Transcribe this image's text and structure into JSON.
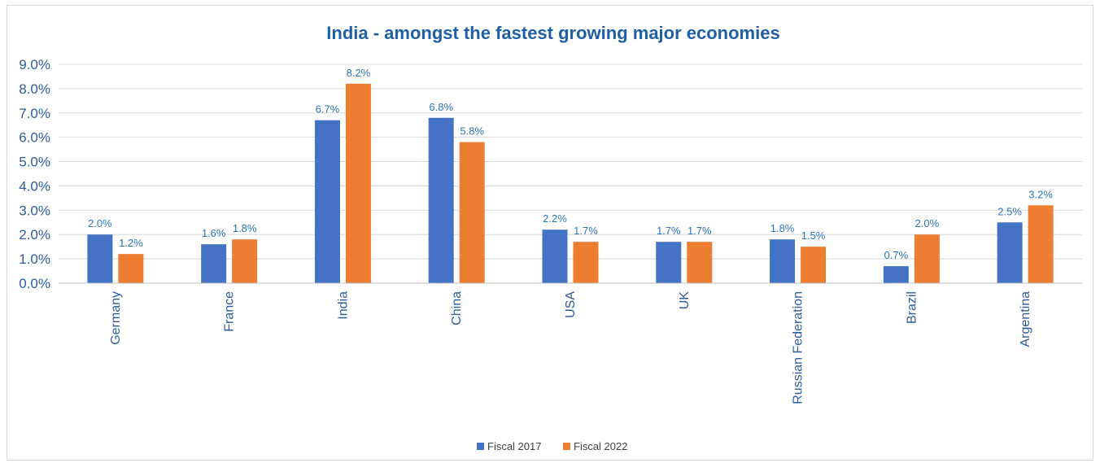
{
  "chart_data": {
    "type": "bar",
    "title": "India - amongst the fastest growing major economies",
    "xlabel": "",
    "ylabel": "",
    "categories": [
      "Germany",
      "France",
      "India",
      "China",
      "USA",
      "UK",
      "Russian Federation",
      "Brazil",
      "Argentina"
    ],
    "series": [
      {
        "name": "Fiscal 2017",
        "values": [
          2.0,
          1.6,
          6.7,
          6.8,
          2.2,
          1.7,
          1.8,
          0.7,
          2.5
        ],
        "labels": [
          "2.0%",
          "1.6%",
          "6.7%",
          "6.8%",
          "2.2%",
          "1.7%",
          "1.8%",
          "0.7%",
          "2.5%"
        ],
        "color": "#4472C4"
      },
      {
        "name": "Fiscal 2022",
        "values": [
          1.2,
          1.8,
          8.2,
          5.8,
          1.7,
          1.7,
          1.5,
          2.0,
          3.2
        ],
        "labels": [
          "1.2%",
          "1.8%",
          "8.2%",
          "5.8%",
          "1.7%",
          "1.7%",
          "1.5%",
          "2.0%",
          "3.2%"
        ],
        "color": "#ED7D31"
      }
    ],
    "ylim": [
      0,
      9
    ],
    "yticks": [
      "0.0%",
      "1.0%",
      "2.0%",
      "3.0%",
      "4.0%",
      "5.0%",
      "6.0%",
      "7.0%",
      "8.0%",
      "9.0%"
    ],
    "grid": true,
    "legend_position": "bottom",
    "colors": {
      "title": "#1F5FA8",
      "axis_text": "#2E5C9A",
      "gridline": "#D9D9D9",
      "data_label": "#2E75B6"
    }
  }
}
